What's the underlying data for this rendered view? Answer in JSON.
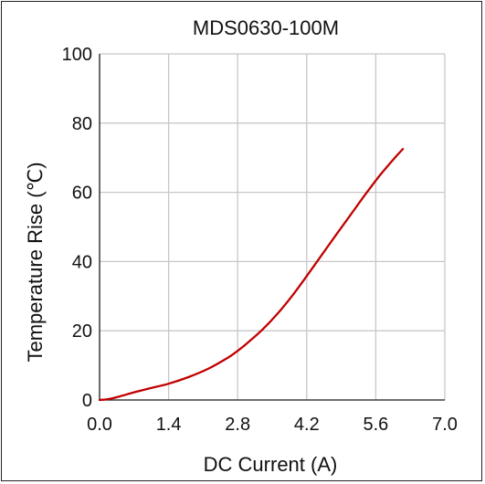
{
  "chart_data": {
    "type": "line",
    "title": "MDS0630-100M",
    "xlabel": "DC Current (A)",
    "ylabel": "Temperature Rise (℃)",
    "xlim": [
      0,
      7.0
    ],
    "ylim": [
      0,
      100
    ],
    "xticks": [
      "0.0",
      "1.4",
      "2.8",
      "4.2",
      "5.6",
      "7.0"
    ],
    "yticks": [
      "0",
      "20",
      "40",
      "60",
      "80",
      "100"
    ],
    "grid": true,
    "legend": "none",
    "series": [
      {
        "color": "#c00000",
        "x": [
          0,
          0.2,
          0.4,
          0.7,
          1.0,
          1.4,
          1.8,
          2.2,
          2.6,
          2.8,
          3.0,
          3.3,
          3.6,
          3.9,
          4.2,
          4.5,
          4.8,
          5.1,
          5.4,
          5.7,
          6.0,
          6.15
        ],
        "y": [
          0,
          0.3,
          1.0,
          2.2,
          3.3,
          4.7,
          6.6,
          9.0,
          12.2,
          14.2,
          16.5,
          20.3,
          24.8,
          30.0,
          35.8,
          41.8,
          47.8,
          53.7,
          59.6,
          65.2,
          70.2,
          72.5
        ]
      }
    ]
  },
  "colors": {
    "line": "#c00000",
    "grid": "#c8c8c8",
    "axis": "#222222"
  }
}
